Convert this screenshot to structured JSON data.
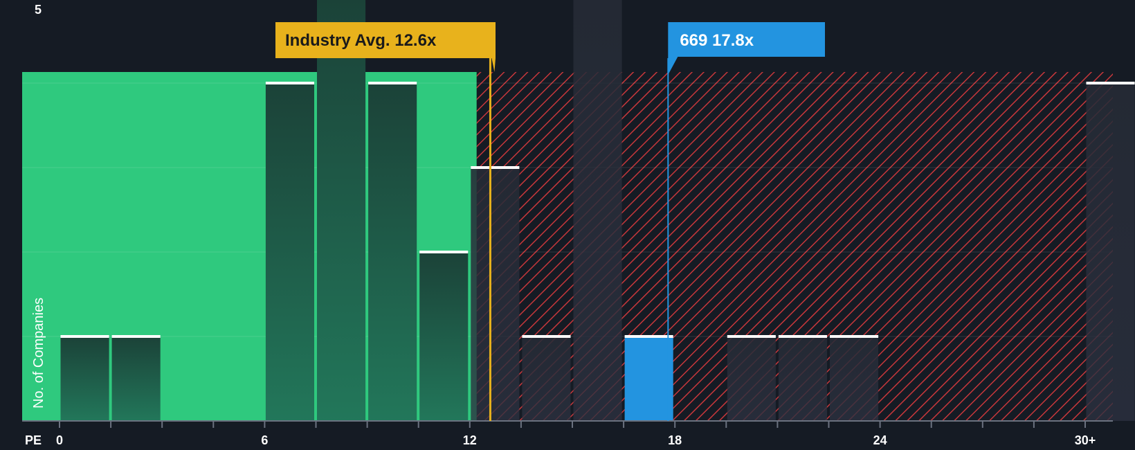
{
  "chart_data": {
    "type": "bar",
    "xlabel": "PE",
    "ylabel": "No. of Companies",
    "x_ticks": [
      "0",
      "6",
      "12",
      "18",
      "24",
      "30+"
    ],
    "y_ticks": [
      "5"
    ],
    "ylim": [
      0,
      5
    ],
    "xlim": [
      0,
      30.9
    ],
    "bin_width": 1.5,
    "bins": [
      {
        "start": 0.0,
        "count": 1
      },
      {
        "start": 1.5,
        "count": 1
      },
      {
        "start": 3.0,
        "count": 0
      },
      {
        "start": 4.5,
        "count": 0
      },
      {
        "start": 6.0,
        "count": 4
      },
      {
        "start": 7.5,
        "count": 5
      },
      {
        "start": 9.0,
        "count": 4
      },
      {
        "start": 10.5,
        "count": 2
      },
      {
        "start": 12.0,
        "count": 3
      },
      {
        "start": 13.5,
        "count": 1
      },
      {
        "start": 15.0,
        "count": 5
      },
      {
        "start": 16.5,
        "count": 1,
        "highlight": true
      },
      {
        "start": 18.0,
        "count": 0
      },
      {
        "start": 19.5,
        "count": 1
      },
      {
        "start": 21.0,
        "count": 1
      },
      {
        "start": 22.5,
        "count": 1
      },
      {
        "start": 24.0,
        "count": 0
      },
      {
        "start": 25.5,
        "count": 0
      },
      {
        "start": 27.0,
        "count": 0
      },
      {
        "start": 28.5,
        "count": 0
      },
      {
        "start": 30.0,
        "count": 4
      }
    ],
    "industry_avg": {
      "value": 12.6,
      "label": "Industry Avg. 12.6x"
    },
    "company": {
      "value": 17.8,
      "label": "669 17.8x"
    },
    "fair_zone_max": 12.2
  },
  "colors": {
    "background": "#151b24",
    "green_zone": "#2fc97e",
    "hatch": "#c8373b",
    "bar_dark": "#1e4a3f",
    "bar_red_zone": "#2a2f3b",
    "highlight": "#2394e0",
    "industry": "#e8b21c",
    "bar_top": "#ffffff"
  }
}
